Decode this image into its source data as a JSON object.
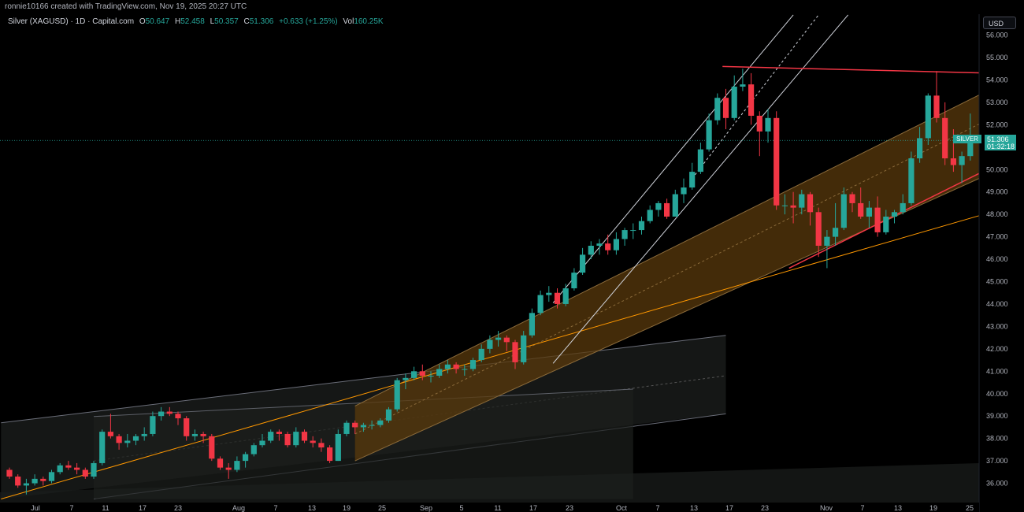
{
  "header": {
    "credit": "ronnie10166 created with TradingView.com, Nov 19, 2025 20:27 UTC"
  },
  "legend": {
    "symbol": "Silver (XAGUSD) · 1D · Capital.com",
    "open_label": "O",
    "open": "50.647",
    "high_label": "H",
    "high": "52.458",
    "low_label": "L",
    "low": "50.357",
    "close_label": "C",
    "close": "51.306",
    "change": "+0.633 (+1.25%)",
    "vol_label": "Vol",
    "vol": "160.25K"
  },
  "currency_button": "USD",
  "last_price": {
    "symbol": "SILVER",
    "price": "51.306",
    "countdown": "01:32:18"
  },
  "colors": {
    "up": "#26a69a",
    "down": "#f23645",
    "channel_fill": "#5a3a0c",
    "orange_line": "#ff9800",
    "red_line": "#f23645",
    "white_line": "#d1d4dc",
    "grey_channel": "#1a1d1c"
  },
  "chart_data": {
    "type": "candlestick",
    "y_ticks": [
      "56.000",
      "55.000",
      "54.000",
      "53.000",
      "52.000",
      "51.000",
      "50.000",
      "49.000",
      "48.000",
      "47.000",
      "46.000",
      "45.000",
      "44.000",
      "43.000",
      "42.000",
      "41.000",
      "40.000",
      "39.000",
      "38.000",
      "37.000",
      "36.000"
    ],
    "x_tick_labels": [
      "Jul",
      "7",
      "11",
      "17",
      "23",
      "Aug",
      "7",
      "13",
      "19",
      "25",
      "Sep",
      "5",
      "11",
      "17",
      "23",
      "Oct",
      "7",
      "13",
      "17",
      "23",
      "Nov",
      "7",
      "13",
      "19",
      "25"
    ],
    "ylim": [
      35.3,
      56.8
    ],
    "candles": [
      [
        36.6,
        36.3,
        36.7,
        36.2
      ],
      [
        36.3,
        35.9,
        36.4,
        35.8
      ],
      [
        35.9,
        36.0,
        36.2,
        35.5
      ],
      [
        36.0,
        36.2,
        36.4,
        35.9
      ],
      [
        36.2,
        36.1,
        36.3,
        35.9
      ],
      [
        36.1,
        36.5,
        36.6,
        36.0
      ],
      [
        36.5,
        36.8,
        36.9,
        36.4
      ],
      [
        36.8,
        36.7,
        37.0,
        36.6
      ],
      [
        36.7,
        36.6,
        36.9,
        36.4
      ],
      [
        36.6,
        36.3,
        36.7,
        36.2
      ],
      [
        36.3,
        36.9,
        37.0,
        36.2
      ],
      [
        36.9,
        38.3,
        38.4,
        36.8
      ],
      [
        38.3,
        38.1,
        39.1,
        38.0
      ],
      [
        38.1,
        37.8,
        38.2,
        37.5
      ],
      [
        37.8,
        37.9,
        38.2,
        37.6
      ],
      [
        37.9,
        38.1,
        38.2,
        37.7
      ],
      [
        38.1,
        38.2,
        38.5,
        37.9
      ],
      [
        38.2,
        39.0,
        39.2,
        38.1
      ],
      [
        39.0,
        39.2,
        39.4,
        38.8
      ],
      [
        39.2,
        39.1,
        39.4,
        39.0
      ],
      [
        39.1,
        38.9,
        39.2,
        38.6
      ],
      [
        38.9,
        38.1,
        39.0,
        37.9
      ],
      [
        38.1,
        38.2,
        38.4,
        37.9
      ],
      [
        38.2,
        38.1,
        38.3,
        37.8
      ],
      [
        38.1,
        37.1,
        38.2,
        37.0
      ],
      [
        37.1,
        36.7,
        37.2,
        36.6
      ],
      [
        36.7,
        36.6,
        36.9,
        36.2
      ],
      [
        36.6,
        37.0,
        37.2,
        36.5
      ],
      [
        37.0,
        37.3,
        37.4,
        36.7
      ],
      [
        37.3,
        37.7,
        37.8,
        37.2
      ],
      [
        37.7,
        37.9,
        38.2,
        37.6
      ],
      [
        37.9,
        38.3,
        38.4,
        37.8
      ],
      [
        38.3,
        38.2,
        38.4,
        37.9
      ],
      [
        38.2,
        37.7,
        38.3,
        37.6
      ],
      [
        37.7,
        38.3,
        38.5,
        37.6
      ],
      [
        38.3,
        37.9,
        38.4,
        37.8
      ],
      [
        37.9,
        37.8,
        38.1,
        37.6
      ],
      [
        37.8,
        37.6,
        38.0,
        37.4
      ],
      [
        37.6,
        37.0,
        37.7,
        36.9
      ],
      [
        37.0,
        38.2,
        38.4,
        37.0
      ],
      [
        38.2,
        38.7,
        38.8,
        38.1
      ],
      [
        38.7,
        38.5,
        38.8,
        38.2
      ],
      [
        38.5,
        38.6,
        38.7,
        38.3
      ],
      [
        38.6,
        38.6,
        38.8,
        38.4
      ],
      [
        38.6,
        38.8,
        38.9,
        38.5
      ],
      [
        38.8,
        39.3,
        39.4,
        38.7
      ],
      [
        39.3,
        40.6,
        40.7,
        39.2
      ],
      [
        40.6,
        40.7,
        40.9,
        40.2
      ],
      [
        40.7,
        41.0,
        41.2,
        40.6
      ],
      [
        41.0,
        40.8,
        41.3,
        40.6
      ],
      [
        40.8,
        40.8,
        41.0,
        40.5
      ],
      [
        40.8,
        41.1,
        41.3,
        40.7
      ],
      [
        41.1,
        41.3,
        41.5,
        40.9
      ],
      [
        41.3,
        41.1,
        41.4,
        40.9
      ],
      [
        41.1,
        41.1,
        41.3,
        40.8
      ],
      [
        41.1,
        41.5,
        41.6,
        41.0
      ],
      [
        41.5,
        42.0,
        42.2,
        41.4
      ],
      [
        42.0,
        42.4,
        42.6,
        41.8
      ],
      [
        42.4,
        42.5,
        42.8,
        42.1
      ],
      [
        42.5,
        42.3,
        42.6,
        41.9
      ],
      [
        42.3,
        41.4,
        42.4,
        41.1
      ],
      [
        41.4,
        42.6,
        42.8,
        41.3
      ],
      [
        42.6,
        43.6,
        43.8,
        42.5
      ],
      [
        43.6,
        44.4,
        44.6,
        43.5
      ],
      [
        44.4,
        44.5,
        44.8,
        44.1
      ],
      [
        44.5,
        44.0,
        44.7,
        43.8
      ],
      [
        44.0,
        44.7,
        44.9,
        43.9
      ],
      [
        44.7,
        45.4,
        45.6,
        44.6
      ],
      [
        45.4,
        46.2,
        46.5,
        45.3
      ],
      [
        46.2,
        46.6,
        46.8,
        46.0
      ],
      [
        46.6,
        46.7,
        46.9,
        46.2
      ],
      [
        46.7,
        46.4,
        47.1,
        46.2
      ],
      [
        46.4,
        46.9,
        47.2,
        46.2
      ],
      [
        46.9,
        47.3,
        47.4,
        46.6
      ],
      [
        47.3,
        47.3,
        47.6,
        46.9
      ],
      [
        47.3,
        47.7,
        47.9,
        47.1
      ],
      [
        47.7,
        48.2,
        48.4,
        47.6
      ],
      [
        48.2,
        48.5,
        48.6,
        47.9
      ],
      [
        48.5,
        47.9,
        48.7,
        47.8
      ],
      [
        47.9,
        48.9,
        49.1,
        47.9
      ],
      [
        48.9,
        49.2,
        49.6,
        48.5
      ],
      [
        49.2,
        49.9,
        50.3,
        49.1
      ],
      [
        49.9,
        50.9,
        51.2,
        49.8
      ],
      [
        50.9,
        52.2,
        52.5,
        50.8
      ],
      [
        52.2,
        53.2,
        53.4,
        52.0
      ],
      [
        53.2,
        52.3,
        53.6,
        51.8
      ],
      [
        52.3,
        53.7,
        54.2,
        52.2
      ],
      [
        53.7,
        53.8,
        54.5,
        53.5
      ],
      [
        53.8,
        52.4,
        54.3,
        52.0
      ],
      [
        52.4,
        51.7,
        52.6,
        50.6
      ],
      [
        51.7,
        52.3,
        52.7,
        51.2
      ],
      [
        52.3,
        48.4,
        52.6,
        48.2
      ],
      [
        48.4,
        48.4,
        48.9,
        48.0
      ],
      [
        48.4,
        48.3,
        49.0,
        47.6
      ],
      [
        48.3,
        48.9,
        49.1,
        48.0
      ],
      [
        48.9,
        48.1,
        49.0,
        47.5
      ],
      [
        48.1,
        46.6,
        48.3,
        46.1
      ],
      [
        46.6,
        47.0,
        47.3,
        45.6
      ],
      [
        47.0,
        47.4,
        48.5,
        46.6
      ],
      [
        47.4,
        48.9,
        49.2,
        47.3
      ],
      [
        48.9,
        48.5,
        49.0,
        48.1
      ],
      [
        48.5,
        47.9,
        49.2,
        47.8
      ],
      [
        47.9,
        48.3,
        48.6,
        47.4
      ],
      [
        48.3,
        47.2,
        48.8,
        47.0
      ],
      [
        47.2,
        47.9,
        48.2,
        47.1
      ],
      [
        47.9,
        48.1,
        48.2,
        47.6
      ],
      [
        48.1,
        48.5,
        48.9,
        48.0
      ],
      [
        48.5,
        50.5,
        50.8,
        48.4
      ],
      [
        50.5,
        51.4,
        51.9,
        50.3
      ],
      [
        51.4,
        53.3,
        53.4,
        51.1
      ],
      [
        53.3,
        52.3,
        54.4,
        52.1
      ],
      [
        52.3,
        50.5,
        53.0,
        50.2
      ],
      [
        50.5,
        50.2,
        51.8,
        49.9
      ],
      [
        50.2,
        50.6,
        50.8,
        49.4
      ],
      [
        50.6,
        51.3,
        52.5,
        50.4
      ]
    ]
  }
}
